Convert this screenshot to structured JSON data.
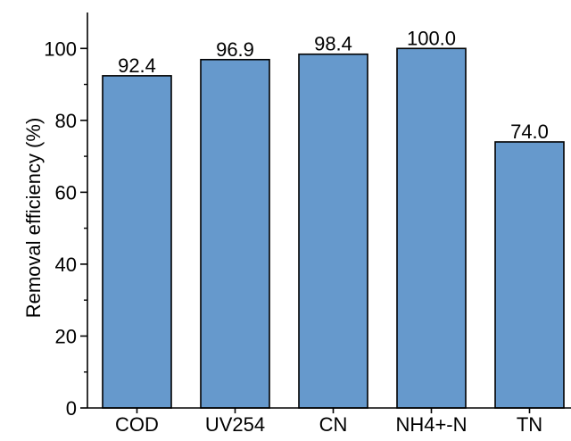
{
  "chart_data": {
    "type": "bar",
    "title": "",
    "xlabel": "",
    "ylabel": "Removal efficiency (%)",
    "categories": [
      "COD",
      "UV254",
      "CN",
      "NH4+-N",
      "TN"
    ],
    "values": [
      92.4,
      96.9,
      98.4,
      100.0,
      74.0
    ],
    "value_labels": [
      "92.4",
      "96.9",
      "98.4",
      "100.0",
      "74.0"
    ],
    "ylim": [
      0,
      110
    ],
    "yticks": [
      0,
      20,
      40,
      60,
      80,
      100
    ],
    "ytick_labels": [
      "0",
      "20",
      "40",
      "60",
      "80",
      "100"
    ],
    "grid": false,
    "legend": "none",
    "colors": {
      "bar_fill": "#6699cc",
      "bar_stroke": "#000000",
      "axis": "#000000"
    }
  }
}
